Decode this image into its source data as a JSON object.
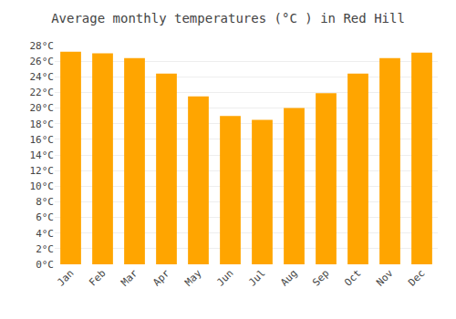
{
  "chart_data": {
    "type": "bar",
    "title": "Average monthly temperatures (°C ) in Red Hill",
    "categories": [
      "Jan",
      "Feb",
      "Mar",
      "Apr",
      "May",
      "Jun",
      "Jul",
      "Aug",
      "Sep",
      "Oct",
      "Nov",
      "Dec"
    ],
    "values": [
      27.2,
      27.0,
      26.4,
      24.4,
      21.5,
      19.0,
      18.5,
      20.0,
      21.9,
      24.4,
      26.4,
      27.1
    ],
    "color": "#FFA500",
    "ylim": [
      0,
      28
    ],
    "yticks": [
      {
        "value": 0,
        "label": "0°C"
      },
      {
        "value": 2,
        "label": "2°C"
      },
      {
        "value": 4,
        "label": "4°C"
      },
      {
        "value": 6,
        "label": "6°C"
      },
      {
        "value": 8,
        "label": "8°C"
      },
      {
        "value": 10,
        "label": "10°C"
      },
      {
        "value": 12,
        "label": "12°C"
      },
      {
        "value": 14,
        "label": "14°C"
      },
      {
        "value": 16,
        "label": "16°C"
      },
      {
        "value": 18,
        "label": "18°C"
      },
      {
        "value": 20,
        "label": "20°C"
      },
      {
        "value": 22,
        "label": "22°C"
      },
      {
        "value": 24,
        "label": "24°C"
      },
      {
        "value": 26,
        "label": "26°C"
      },
      {
        "value": 28,
        "label": "28°C"
      }
    ],
    "grid": true
  }
}
